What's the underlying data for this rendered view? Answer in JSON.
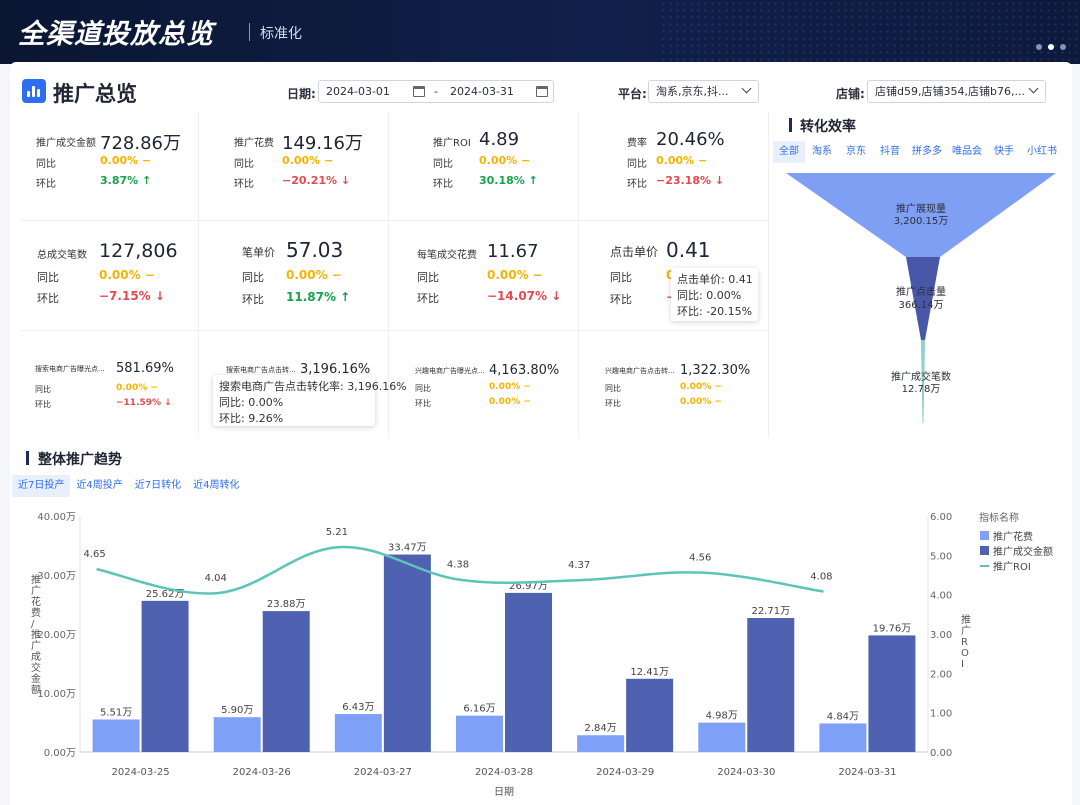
{
  "header": {
    "title": "全渠道投放总览",
    "subtitle": "标准化"
  },
  "page": {
    "title": "推广总览"
  },
  "filters": {
    "date_label": "日期:",
    "date_start": "2024-03-01",
    "date_sep": "-",
    "date_end": "2024-03-31",
    "platform_label": "平台:",
    "platform_value": "淘系,京东,抖...",
    "shop_label": "店铺:",
    "shop_value": "店铺d59,店铺354,店铺b76,..."
  },
  "kpis": [
    {
      "label": "推广成交金额",
      "value": "728.86万",
      "yoy_label": "同比",
      "yoy": "0.00% −",
      "mom_label": "环比",
      "mom": "3.87% ↑"
    },
    {
      "label": "推广花费",
      "value": "149.16万",
      "yoy_label": "同比",
      "yoy": "0.00% −",
      "mom_label": "环比",
      "mom": "−20.21% ↓"
    },
    {
      "label": "推广ROI",
      "value": "4.89",
      "yoy_label": "同比",
      "yoy": "0.00% −",
      "mom_label": "环比",
      "mom": "30.18% ↑"
    },
    {
      "label": "费率",
      "value": "20.46%",
      "yoy_label": "同比",
      "yoy": "0.00% −",
      "mom_label": "环比",
      "mom": "−23.18% ↓"
    },
    {
      "label": "总成交笔数",
      "value": "127,806",
      "yoy_label": "同比",
      "yoy": "0.00% −",
      "mom_label": "环比",
      "mom": "−7.15% ↓"
    },
    {
      "label": "笔单价",
      "value": "57.03",
      "yoy_label": "同比",
      "yoy": "0.00% −",
      "mom_label": "环比",
      "mom": "11.87% ↑"
    },
    {
      "label": "每笔成交花费",
      "value": "11.67",
      "yoy_label": "同比",
      "yoy": "0.00% −",
      "mom_label": "环比",
      "mom": "−14.07% ↓"
    },
    {
      "label": "点击单价",
      "value": "0.41",
      "yoy_label": "同比",
      "yoy": "0",
      "mom_label": "环比",
      "mom": "−"
    },
    {
      "label": "搜索电商广告曝光点...",
      "value": "581.69%",
      "yoy_label": "同比",
      "yoy": "0.00% −",
      "mom_label": "环比",
      "mom": "−11.59% ↓"
    },
    {
      "label": "搜索电商广告点击转...",
      "value": "3,196.16%",
      "yoy_label": "同比",
      "yoy": "",
      "mom_label": "环比",
      "mom": ""
    },
    {
      "label": "兴趣电商广告曝光点...",
      "value": "4,163.80%",
      "yoy_label": "同比",
      "yoy": "0.00% −",
      "mom_label": "环比",
      "mom": "0.00% −"
    },
    {
      "label": "兴趣电商广告点击转...",
      "value": "1,322.30%",
      "yoy_label": "同比",
      "yoy": "0.00% −",
      "mom_label": "环比",
      "mom": "0.00% −"
    }
  ],
  "tooltips": {
    "click_price": [
      "点击单价: 0.41",
      "同比: 0.00%",
      "环比: -20.15%"
    ],
    "search_ctr": [
      "搜索电商广告点击转化率: 3,196.16%",
      "同比: 0.00%",
      "环比: 9.26%"
    ]
  },
  "funnel": {
    "title": "转化效率",
    "tabs": [
      "全部",
      "淘系",
      "京东",
      "抖音",
      "拼多多",
      "唯品会",
      "快手",
      "小红书"
    ],
    "active_tab": 0,
    "stages": [
      {
        "name": "推广展现量",
        "value": "3,200.15万"
      },
      {
        "name": "推广点击量",
        "value": "366.14万"
      },
      {
        "name": "推广成交笔数",
        "value": "12.78万"
      }
    ]
  },
  "trend": {
    "title": "整体推广趋势",
    "tabs": [
      "近7日投产",
      "近4周投产",
      "近7日转化",
      "近4周转化"
    ],
    "active_tab": 0
  },
  "chart_data": {
    "type": "bar",
    "title": "整体推广趋势",
    "xlabel": "日期",
    "ylabel": "推广花费/推广成交金额",
    "y2label": "推广ROI",
    "categories": [
      "2024-03-25",
      "2024-03-26",
      "2024-03-27",
      "2024-03-28",
      "2024-03-29",
      "2024-03-30",
      "2024-03-31"
    ],
    "series": [
      {
        "name": "推广花费",
        "type": "bar",
        "axis": "left",
        "color": "#7fa0f7",
        "values": [
          5.51,
          5.9,
          6.43,
          6.16,
          2.84,
          4.98,
          4.84
        ],
        "labels": [
          "5.51万",
          "5.90万",
          "6.43万",
          "6.16万",
          "2.84万",
          "4.98万",
          "4.84万"
        ]
      },
      {
        "name": "推广成交金额",
        "type": "bar",
        "axis": "left",
        "color": "#4f62b2",
        "values": [
          25.62,
          23.88,
          33.47,
          26.97,
          12.41,
          22.71,
          19.76
        ],
        "labels": [
          "25.62万",
          "23.88万",
          "33.47万",
          "26.97万",
          "12.41万",
          "22.71万",
          "19.76万"
        ]
      },
      {
        "name": "推广ROI",
        "type": "line",
        "axis": "right",
        "color": "#5cc4b8",
        "values": [
          4.65,
          4.04,
          5.21,
          4.38,
          4.37,
          4.56,
          4.08
        ],
        "labels": [
          "4.65",
          "4.04",
          "5.21",
          "4.38",
          "4.37",
          "4.56",
          "4.08"
        ]
      }
    ],
    "ylim": [
      0,
      40
    ],
    "y_ticks": [
      "0.00万",
      "10.00万",
      "20.00万",
      "30.00万",
      "40.00万"
    ],
    "y2lim": [
      0,
      6
    ],
    "y2_ticks": [
      "0.00",
      "1.00",
      "2.00",
      "3.00",
      "4.00",
      "5.00",
      "6.00"
    ],
    "legend_title": "指标名称",
    "legend_position": "right"
  }
}
